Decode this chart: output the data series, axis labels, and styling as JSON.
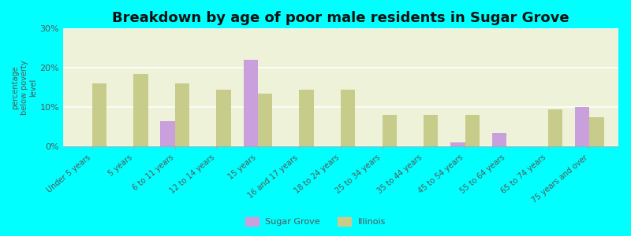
{
  "title": "Breakdown by age of poor male residents in Sugar Grove",
  "ylabel": "percentage\nbelow poverty\nlevel",
  "categories": [
    "Under 5 years",
    "5 years",
    "6 to 11 years",
    "12 to 14 years",
    "15 years",
    "16 and 17 years",
    "18 to 24 years",
    "25 to 34 years",
    "35 to 44 years",
    "45 to 54 years",
    "55 to 64 years",
    "65 to 74 years",
    "75 years and over"
  ],
  "sugar_grove": [
    0,
    0,
    6.5,
    0,
    22,
    0,
    0,
    0,
    0,
    1.0,
    3.5,
    0,
    10.0
  ],
  "illinois": [
    16,
    18.5,
    16,
    14.5,
    13.5,
    14.5,
    14.5,
    8,
    8,
    8,
    0,
    9.5,
    7.5
  ],
  "sugar_grove_color": "#c9a0dc",
  "illinois_color": "#c8cc8a",
  "background_color": "#00ffff",
  "plot_bg_color": "#eef2d8",
  "ylim": [
    0,
    30
  ],
  "yticks": [
    0,
    10,
    20,
    30
  ],
  "ytick_labels": [
    "0%",
    "10%",
    "20%",
    "30%"
  ],
  "title_fontsize": 13,
  "bar_width": 0.35
}
